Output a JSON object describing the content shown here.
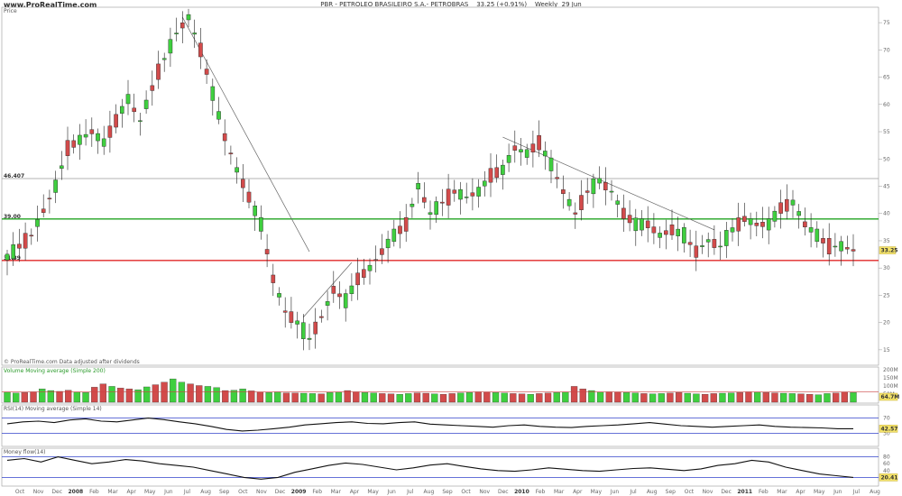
{
  "header": {
    "brand": "www.ProRealTime.com",
    "title": "PBR - PETROLEO BRASILEIRO S.A.- PETROBRAS    33.25 (+0.91%)    Weekly  29 Jun"
  },
  "panels": {
    "price_label": "Price",
    "source_note": "© ProRealTime.com  Data adjusted after dividends",
    "volume_label": "Volume  Moving average (Simple 200)",
    "rsi_label": "RSI(14)  Moving average (Simple 14)",
    "mfi_label": "Money flow(14)"
  },
  "colors": {
    "up": "#3fcf3f",
    "down": "#d24b4b",
    "support_green": "#22a322",
    "support_red": "#e02828",
    "trend_line": "#666666",
    "band": "#3344cc"
  },
  "chart_data": {
    "type": "candlestick",
    "title": "PBR - PETROLEO BRASILEIRO S.A.- PETROBRAS",
    "last": 33.25,
    "change_pct": "+0.91%",
    "timeframe": "Weekly",
    "date": "29 Jun",
    "price_axis": {
      "ticks": [
        15,
        20,
        25,
        30,
        35,
        40,
        45,
        50,
        55,
        60,
        65,
        70,
        75
      ],
      "range": [
        12.5,
        77.5
      ]
    },
    "x_axis_labels": [
      "Oct",
      "Nov",
      "Dec",
      "2008",
      "Feb",
      "Mar",
      "Apr",
      "May",
      "Jun",
      "Jul",
      "Aug",
      "Sep",
      "Oct",
      "Nov",
      "Dec",
      "2009",
      "Feb",
      "Mar",
      "Apr",
      "May",
      "Jun",
      "Jul",
      "Aug",
      "Sep",
      "Oct",
      "Nov",
      "Dec",
      "2010",
      "Feb",
      "Mar",
      "Apr",
      "May",
      "Jun",
      "Jul",
      "Aug",
      "Sep",
      "Oct",
      "Nov",
      "Dec",
      "2011",
      "Feb",
      "Mar",
      "Apr",
      "May",
      "Jun",
      "Jul",
      "Aug"
    ],
    "horizontal_levels": [
      {
        "value": 46.407,
        "label": "46.407",
        "color": "#9a9a9a"
      },
      {
        "value": 39.0,
        "label": "39.00",
        "color": "#22a322"
      },
      {
        "value": 31.39,
        "label": "31.39",
        "color": "#e02828"
      }
    ],
    "right_price_tag": "33.25",
    "price_keypoints": [
      [
        0,
        32
      ],
      [
        4,
        36
      ],
      [
        8,
        45
      ],
      [
        10,
        52
      ],
      [
        14,
        55
      ],
      [
        16,
        53
      ],
      [
        18,
        57
      ],
      [
        20,
        61
      ],
      [
        22,
        57
      ],
      [
        25,
        66
      ],
      [
        28,
        73
      ],
      [
        30,
        76
      ],
      [
        32,
        70
      ],
      [
        34,
        62
      ],
      [
        36,
        54
      ],
      [
        38,
        48
      ],
      [
        40,
        43
      ],
      [
        42,
        38
      ],
      [
        44,
        28
      ],
      [
        46,
        22
      ],
      [
        48,
        20
      ],
      [
        50,
        17
      ],
      [
        52,
        21
      ],
      [
        54,
        26
      ],
      [
        56,
        24
      ],
      [
        58,
        28
      ],
      [
        60,
        30
      ],
      [
        62,
        33
      ],
      [
        64,
        36
      ],
      [
        66,
        38
      ],
      [
        68,
        45
      ],
      [
        70,
        40
      ],
      [
        72,
        42
      ],
      [
        74,
        44
      ],
      [
        76,
        43
      ],
      [
        78,
        44
      ],
      [
        80,
        47
      ],
      [
        82,
        48
      ],
      [
        84,
        52
      ],
      [
        86,
        51
      ],
      [
        88,
        53
      ],
      [
        90,
        49
      ],
      [
        92,
        44
      ],
      [
        94,
        40
      ],
      [
        96,
        44
      ],
      [
        98,
        46
      ],
      [
        100,
        44
      ],
      [
        102,
        40
      ],
      [
        104,
        38
      ],
      [
        106,
        38
      ],
      [
        108,
        36
      ],
      [
        110,
        37
      ],
      [
        112,
        36
      ],
      [
        114,
        33
      ],
      [
        116,
        35
      ],
      [
        118,
        34
      ],
      [
        120,
        37
      ],
      [
        122,
        39
      ],
      [
        124,
        38
      ],
      [
        126,
        38
      ],
      [
        128,
        41
      ],
      [
        130,
        42
      ],
      [
        132,
        38
      ],
      [
        134,
        36
      ],
      [
        136,
        34
      ],
      [
        138,
        34
      ],
      [
        140,
        33.25
      ]
    ],
    "volume_axis": {
      "ticks": [
        "200M",
        "150M",
        "100M",
        "50M"
      ]
    },
    "volume_ma_value": "64.7M",
    "volume_levels": [
      60,
      55,
      58,
      62,
      80,
      70,
      65,
      72,
      60,
      58,
      90,
      110,
      95,
      85,
      80,
      75,
      92,
      105,
      120,
      140,
      120,
      110,
      100,
      95,
      88,
      70,
      72,
      80,
      68,
      60,
      58,
      62,
      56,
      55,
      54,
      52,
      50,
      58,
      60,
      70,
      62,
      58,
      56,
      52,
      50,
      48,
      52,
      56,
      54,
      50,
      48,
      52,
      56,
      58,
      62,
      60,
      58,
      55,
      52,
      50,
      48,
      52,
      55,
      58,
      60,
      95,
      80,
      70,
      60,
      62,
      60,
      58,
      56,
      52,
      50,
      52,
      55,
      58,
      54,
      50,
      48,
      52,
      54,
      56,
      58,
      62,
      60,
      58,
      56,
      54,
      52,
      50,
      48,
      45,
      52,
      55,
      60,
      58
    ],
    "rsi": {
      "ticks": [
        70,
        30
      ],
      "value": "42.57",
      "series": [
        55,
        60,
        62,
        58,
        65,
        68,
        62,
        60,
        65,
        70,
        66,
        60,
        55,
        48,
        40,
        36,
        38,
        42,
        46,
        52,
        55,
        58,
        60,
        56,
        55,
        58,
        60,
        54,
        52,
        50,
        48,
        46,
        50,
        52,
        48,
        46,
        45,
        48,
        50,
        52,
        55,
        58,
        54,
        50,
        48,
        46,
        48,
        50,
        52,
        48,
        46,
        45,
        44,
        42,
        42
      ]
    },
    "mfi": {
      "ticks": [
        80,
        60,
        40,
        20
      ],
      "value": "20.41",
      "series": [
        70,
        75,
        65,
        80,
        70,
        60,
        65,
        72,
        68,
        60,
        55,
        50,
        40,
        30,
        20,
        15,
        20,
        35,
        45,
        55,
        62,
        58,
        50,
        42,
        48,
        56,
        60,
        52,
        45,
        40,
        38,
        42,
        48,
        44,
        40,
        38,
        42,
        46,
        48,
        44,
        40,
        45,
        55,
        60,
        70,
        65,
        50,
        40,
        30,
        25,
        20
      ]
    }
  }
}
